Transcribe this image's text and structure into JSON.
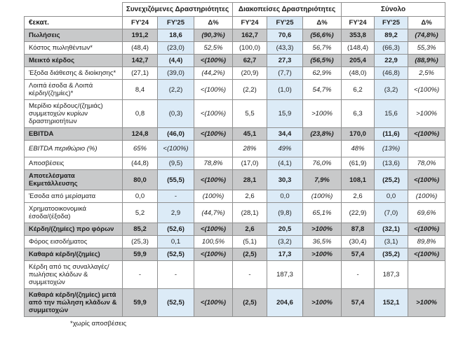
{
  "table": {
    "unit_label": "€εκατ.",
    "groups": [
      {
        "label": "Συνεχιζόμενες Δραστηριότητες"
      },
      {
        "label": "Διακοπείσες  Δραστηριότητες"
      },
      {
        "label": "Σύνολο"
      }
    ],
    "columns": [
      "FY'24",
      "FY'25",
      "Δ%",
      "FY'24",
      "FY'25",
      "Δ%",
      "FY'24",
      "FY'25",
      "Δ%"
    ],
    "rows": [
      {
        "label": "Πωλήσεις",
        "bold": true,
        "values": [
          "191,2",
          "18,6",
          "(90,3%)",
          "162,7",
          "70,6",
          "(56,6%)",
          "353,8",
          "89,2",
          "(74,8%)"
        ]
      },
      {
        "label": "Κόστος πωληθέντων*",
        "values": [
          "(48,4)",
          "(23,0)",
          "52,5%",
          "(100,0)",
          "(43,3)",
          "56,7%",
          "(148,4)",
          "(66,3)",
          "55,3%"
        ]
      },
      {
        "label": "Μεικτό κέρδος",
        "bold": true,
        "values": [
          "142,7",
          "(4,4)",
          "<(100%)",
          "62,7",
          "27,3",
          "(56,5%)",
          "205,4",
          "22,9",
          "(88,9%)"
        ]
      },
      {
        "label": "Έξοδα διάθεσης & διοίκησης*",
        "values": [
          "(27,1)",
          "(39,0)",
          "(44,2%)",
          "(20,9)",
          "(7,7)",
          "62,9%",
          "(48,0)",
          "(46,8)",
          "2,5%"
        ]
      },
      {
        "label": "Λοιπά έσοδα & Λοιπά κέρδη/(ζημίες)*",
        "values": [
          "8,4",
          "(2,2)",
          "<(100%)",
          "(2,2)",
          "(1,0)",
          "54,7%",
          "6,2",
          "(3,2)",
          "<(100%)"
        ]
      },
      {
        "label": "Μερίδιο κέρδους/(ζημιάς) συμμετοχών κυρίων δραστηριοτήτων",
        "values": [
          "0,8",
          "(0,3)",
          "<(100%)",
          "5,5",
          "15,9",
          ">100%",
          "6,3",
          "15,6",
          ">100%"
        ]
      },
      {
        "label": "EBITDA",
        "bold": true,
        "values": [
          "124,8",
          "(46,0)",
          "<(100%)",
          "45,1",
          "34,4",
          "(23,8%)",
          "170,0",
          "(11,6)",
          "<(100%)"
        ]
      },
      {
        "label": "EBITDA περιθώριο (%)",
        "italic": true,
        "values": [
          "65%",
          "<(100%)",
          "",
          "28%",
          "49%",
          "",
          "48%",
          "(13%)",
          ""
        ]
      },
      {
        "label": "Αποσβέσεις",
        "values": [
          "(44,8)",
          "(9,5)",
          "78,8%",
          "(17,0)",
          "(4,1)",
          "76,0%",
          "(61,9)",
          "(13,6)",
          "78,0%"
        ]
      },
      {
        "label": "Αποτελέσματα Εκμετάλλευσης",
        "bold": true,
        "values": [
          "80,0",
          "(55,5)",
          "<(100%)",
          "28,1",
          "30,3",
          "7,9%",
          "108,1",
          "(25,2)",
          "<(100%)"
        ]
      },
      {
        "label": "Έσοδα από μερίσματα",
        "values": [
          "0,0",
          "-",
          "(100%)",
          "2,6",
          "0,0",
          "(100%)",
          "2,6",
          "0,0",
          "(100%)"
        ]
      },
      {
        "label": "Χρηματοοικονομικά έσοδα/(έξοδα)",
        "values": [
          "5,2",
          "2,9",
          "(44,7%)",
          "(28,1)",
          "(9,8)",
          "65,1%",
          "(22,9)",
          "(7,0)",
          "69,6%"
        ]
      },
      {
        "label": "Κέρδη/(ζημίες) προ φόρων",
        "bold": true,
        "values": [
          "85,2",
          "(52,6)",
          "<(100%)",
          "2,6",
          "20,5",
          ">100%",
          "87,8",
          "(32,1)",
          "<(100%)"
        ]
      },
      {
        "label": "Φόρος εισοδήματος",
        "values": [
          "(25,3)",
          "0,1",
          "100,5%",
          "(5,1)",
          "(3,2)",
          "36,5%",
          "(30,4)",
          "(3,1)",
          "89,8%"
        ]
      },
      {
        "label": "Καθαρά κέρδη/(ζημίες)",
        "bold": true,
        "values": [
          "59,9",
          "(52,5)",
          "<(100%)",
          "(2,5)",
          "17,3",
          ">100%",
          "57,4",
          "(35,2)",
          "<(100%)"
        ]
      },
      {
        "label": "Κέρδη από τις συναλλαγές/ πωλήσεις κλάδων & συμμετοχών",
        "no_highlight": true,
        "values": [
          "-",
          "-",
          "",
          "-",
          "187,3",
          "",
          "-",
          "187,3",
          ""
        ]
      },
      {
        "label": "Καθαρά κέρδη/(ζημίες) μετά από την πώληση κλάδων & συμμετοχών",
        "bold": true,
        "values": [
          "59,9",
          "(52,5)",
          "<(100%)",
          "(2,5)",
          "204,6",
          ">100%",
          "57,4",
          "152,1",
          ">100%"
        ]
      }
    ]
  },
  "footnote": "*χωρίς αποσβέσεις",
  "colors": {
    "fy25_highlight": "#dcebf7",
    "total_row_gray": "#c8c9ca",
    "border": "#8f8f8f"
  }
}
